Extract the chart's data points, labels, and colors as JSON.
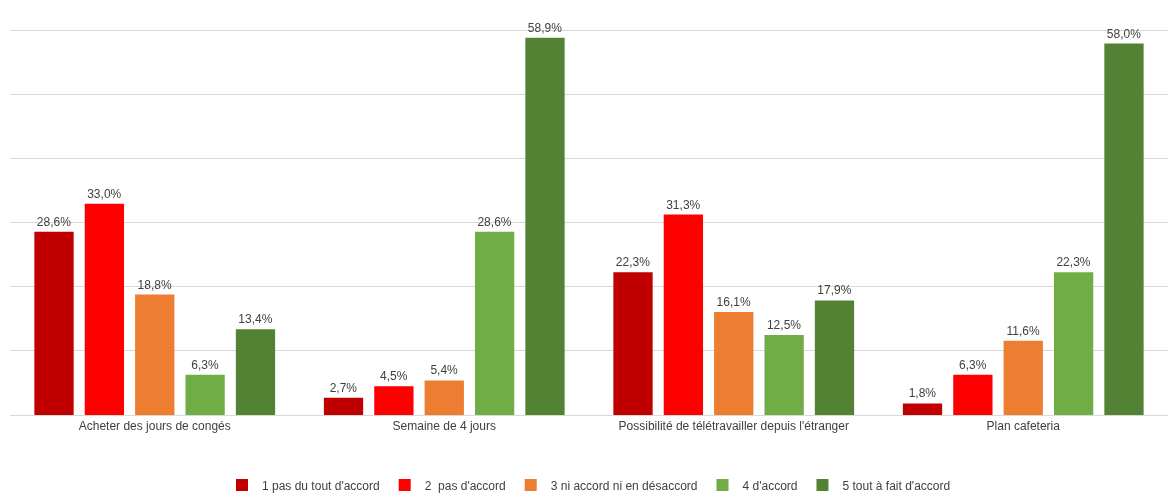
{
  "chart_data": {
    "type": "bar",
    "categories": [
      "Acheter des jours de congés",
      "Semaine de 4 jours",
      "Possibilité de télétravailler depuis l'étranger",
      "Plan cafeteria"
    ],
    "series": [
      {
        "name": "1 pas du tout d'accord",
        "color": "#c00000",
        "values": [
          28.6,
          2.7,
          22.3,
          1.8
        ],
        "value_labels": [
          "28,6%",
          "2,7%",
          "22,3%",
          "1,8%"
        ]
      },
      {
        "name": "2  pas d'accord",
        "color": "#ff0000",
        "values": [
          33.0,
          4.5,
          31.3,
          6.3
        ],
        "value_labels": [
          "33,0%",
          "4,5%",
          "31,3%",
          "6,3%"
        ]
      },
      {
        "name": "3 ni accord ni en désaccord",
        "color": "#ed7d31",
        "values": [
          18.8,
          5.4,
          16.1,
          11.6
        ],
        "value_labels": [
          "18,8%",
          "5,4%",
          "16,1%",
          "11,6%"
        ]
      },
      {
        "name": "4 d'accord",
        "color": "#70ad47",
        "values": [
          6.3,
          28.6,
          12.5,
          22.3
        ],
        "value_labels": [
          "6,3%",
          "28,6%",
          "12,5%",
          "22,3%"
        ]
      },
      {
        "name": "5 tout à fait d'accord",
        "color": "#548235",
        "values": [
          13.4,
          58.9,
          17.9,
          58.0
        ],
        "value_labels": [
          "13,4%",
          "58,9%",
          "17,9%",
          "58,0%"
        ]
      }
    ],
    "tick_labels": "x",
    "grid": "y",
    "legend": "bottom"
  }
}
